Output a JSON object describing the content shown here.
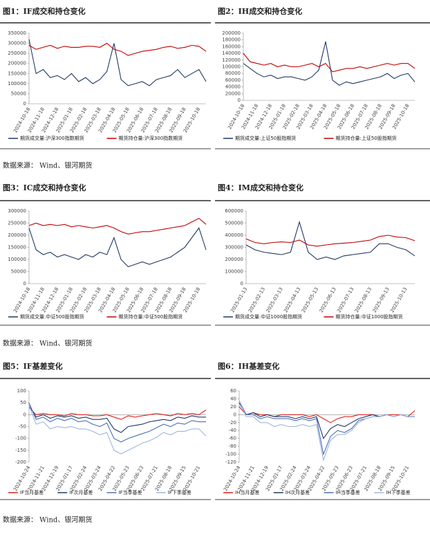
{
  "chart_data": [
    {
      "type": "line",
      "title": "图1：IF成交和持仓变化",
      "categories": [
        "2024-10-18",
        null,
        "2024-11-18",
        null,
        "2024-12-18",
        null,
        "2025-01-18",
        null,
        "2025-02-18",
        null,
        "2025-03-18",
        null,
        "2025-04-18",
        null,
        "2025-05-18",
        null,
        "2025-06-18",
        null,
        "2025-07-18",
        null,
        "2025-08-18",
        null,
        "2025-09-18",
        null,
        "2025-10-18",
        null
      ],
      "ylim": [
        0,
        350000
      ],
      "yticks": [
        0,
        50000,
        100000,
        150000,
        200000,
        250000,
        300000,
        350000
      ],
      "grid": false,
      "series": [
        {
          "name": "期货成交量:沪深300指数期货",
          "color": "#1f3864",
          "values": [
            320000,
            150000,
            170000,
            130000,
            140000,
            120000,
            150000,
            110000,
            130000,
            100000,
            120000,
            160000,
            300000,
            120000,
            90000,
            100000,
            110000,
            90000,
            120000,
            130000,
            140000,
            170000,
            130000,
            150000,
            170000,
            110000
          ]
        },
        {
          "name": "期货持仓量:沪深300指数期货",
          "color": "#c00000",
          "values": [
            290000,
            270000,
            280000,
            290000,
            275000,
            285000,
            280000,
            280000,
            285000,
            285000,
            280000,
            300000,
            270000,
            260000,
            240000,
            250000,
            260000,
            265000,
            270000,
            280000,
            285000,
            275000,
            280000,
            290000,
            285000,
            260000
          ]
        }
      ]
    },
    {
      "type": "line",
      "title": "图2：IH成交和持仓变化",
      "categories": [
        "2024-10-18",
        null,
        "2024-11-18",
        null,
        "2024-12-18",
        null,
        "2025-01-18",
        null,
        "2025-02-18",
        null,
        "2025-03-18",
        null,
        "2025-04-18",
        null,
        "2025-05-18",
        null,
        "2025-06-18",
        null,
        "2025-07-18",
        null,
        "2025-08-18",
        null,
        "2025-09-18",
        null,
        "2025-10-18",
        null
      ],
      "ylim": [
        0,
        200000
      ],
      "yticks": [
        0,
        20000,
        40000,
        60000,
        80000,
        100000,
        120000,
        140000,
        160000,
        180000,
        200000
      ],
      "grid": false,
      "series": [
        {
          "name": "期货成交量:上证50股指期货",
          "color": "#1f3864",
          "values": [
            110000,
            95000,
            80000,
            70000,
            75000,
            65000,
            70000,
            70000,
            65000,
            60000,
            70000,
            90000,
            175000,
            60000,
            45000,
            55000,
            50000,
            55000,
            60000,
            65000,
            70000,
            80000,
            65000,
            75000,
            80000,
            55000
          ]
        },
        {
          "name": "期货持仓量:上证50股指期货",
          "color": "#c00000",
          "values": [
            140000,
            115000,
            110000,
            105000,
            110000,
            100000,
            105000,
            100000,
            100000,
            105000,
            110000,
            100000,
            110000,
            85000,
            90000,
            95000,
            95000,
            100000,
            95000,
            100000,
            105000,
            110000,
            105000,
            110000,
            110000,
            95000
          ]
        }
      ]
    },
    {
      "type": "line",
      "title": "图3：IC成交和持仓变化",
      "categories": [
        "2024-10-18",
        null,
        "2024-11-18",
        null,
        "2024-12-18",
        null,
        "2025-01-18",
        null,
        "2025-02-18",
        null,
        "2025-03-18",
        null,
        "2025-04-18",
        null,
        "2025-05-18",
        null,
        "2025-06-18",
        null,
        "2025-07-18",
        null,
        "2025-08-18",
        null,
        "2025-09-18",
        null,
        "2025-10-18",
        null
      ],
      "ylim": [
        0,
        300000
      ],
      "yticks": [
        0,
        50000,
        100000,
        150000,
        200000,
        250000,
        300000
      ],
      "grid": false,
      "series": [
        {
          "name": "期货成交量:中证500股指期货",
          "color": "#1f3864",
          "values": [
            230000,
            140000,
            120000,
            130000,
            110000,
            120000,
            110000,
            100000,
            120000,
            110000,
            130000,
            120000,
            190000,
            100000,
            70000,
            80000,
            90000,
            80000,
            90000,
            100000,
            110000,
            130000,
            150000,
            190000,
            230000,
            140000
          ]
        },
        {
          "name": "期货持仓量:中证500股指期货",
          "color": "#c00000",
          "values": [
            240000,
            250000,
            240000,
            245000,
            240000,
            245000,
            235000,
            240000,
            235000,
            230000,
            235000,
            240000,
            230000,
            215000,
            205000,
            210000,
            215000,
            215000,
            220000,
            225000,
            230000,
            235000,
            240000,
            255000,
            270000,
            245000
          ]
        }
      ]
    },
    {
      "type": "line",
      "title": "图4：IM成交和持仓变化",
      "categories": [
        "2025-01-13",
        null,
        "2025-02-13",
        null,
        "2025-03-13",
        null,
        "2025-04-13",
        null,
        "2025-05-13",
        null,
        "2025-06-13",
        null,
        "2025-07-13",
        null,
        "2025-08-13",
        null,
        "2025-09-13",
        null,
        "2025-10-13",
        null
      ],
      "ylim": [
        0,
        600000
      ],
      "yticks": [
        0,
        100000,
        200000,
        300000,
        400000,
        500000,
        600000
      ],
      "grid": false,
      "series": [
        {
          "name": "期货成交量:中证1000股指期货",
          "color": "#1f3864",
          "values": [
            320000,
            280000,
            260000,
            250000,
            240000,
            260000,
            510000,
            260000,
            200000,
            220000,
            200000,
            230000,
            240000,
            250000,
            260000,
            330000,
            330000,
            300000,
            280000,
            230000
          ]
        },
        {
          "name": "期货持仓量:中证1000股指期货",
          "color": "#c00000",
          "values": [
            370000,
            340000,
            330000,
            340000,
            345000,
            340000,
            360000,
            320000,
            310000,
            320000,
            330000,
            335000,
            340000,
            350000,
            360000,
            390000,
            400000,
            385000,
            380000,
            355000
          ]
        }
      ]
    },
    {
      "type": "line",
      "title": "图5：IF基差变化",
      "categories": [
        "2024-10-24",
        null,
        "2024-11-21",
        null,
        "2024-12-19",
        null,
        "2025-01-17",
        null,
        "2025-02-24",
        null,
        "2025-03-24",
        null,
        "2025-04-22",
        null,
        "2025-05-23",
        null,
        "2025-06-23",
        null,
        "2025-07-21",
        null,
        "2025-08-18",
        null,
        "2025-09-15",
        null,
        "2025-10-21",
        null
      ],
      "ylim": [
        -200,
        100
      ],
      "yticks": [
        -200,
        -150,
        -100,
        -50,
        0,
        50,
        100
      ],
      "grid": false,
      "series": [
        {
          "name": "IF当月基差",
          "color": "#e0201b",
          "values": [
            30,
            0,
            5,
            0,
            0,
            -5,
            5,
            0,
            0,
            -5,
            -5,
            0,
            -10,
            -20,
            -5,
            -10,
            -5,
            0,
            5,
            0,
            -5,
            5,
            0,
            5,
            0,
            20
          ]
        },
        {
          "name": "IF次月基差",
          "color": "#1f3864",
          "values": [
            40,
            -10,
            0,
            -15,
            -5,
            -10,
            -5,
            -15,
            -10,
            -20,
            -20,
            -15,
            -60,
            -75,
            -50,
            -45,
            -40,
            -30,
            -25,
            -20,
            -25,
            -10,
            -15,
            -5,
            -10,
            -10
          ]
        },
        {
          "name": "IF当季基差",
          "color": "#4a6fb5",
          "values": [
            50,
            -20,
            -10,
            -30,
            -15,
            -25,
            -15,
            -30,
            -25,
            -40,
            -50,
            -35,
            -100,
            -115,
            -100,
            -90,
            -80,
            -70,
            -55,
            -40,
            -50,
            -35,
            -40,
            -25,
            -30,
            -30
          ]
        },
        {
          "name": "IF下季基差",
          "color": "#9db4e0",
          "values": [
            40,
            -40,
            -30,
            -60,
            -50,
            -55,
            -50,
            -60,
            -60,
            -70,
            -85,
            -75,
            -150,
            -165,
            -150,
            -135,
            -120,
            -110,
            -95,
            -75,
            -85,
            -70,
            -70,
            -60,
            -60,
            -90
          ]
        }
      ]
    },
    {
      "type": "line",
      "title": "图6：IH基差变化",
      "categories": [
        "2024-10-24",
        null,
        "2024-11-21",
        null,
        "2024-12-19",
        null,
        "2025-01-17",
        null,
        "2025-02-24",
        null,
        "2025-03-24",
        null,
        "2025-04-22",
        null,
        "2025-05-23",
        null,
        "2025-06-23",
        null,
        "2025-07-21",
        null,
        "2025-08-18",
        null,
        "2025-09-15",
        null,
        "2025-10-21",
        null
      ],
      "ylim": [
        -120,
        60
      ],
      "yticks": [
        -120,
        -100,
        -80,
        -60,
        -40,
        -20,
        0,
        20,
        40,
        60
      ],
      "grid": false,
      "series": [
        {
          "name": "IH当月基差",
          "color": "#e0201b",
          "values": [
            20,
            0,
            5,
            0,
            0,
            -5,
            0,
            0,
            0,
            0,
            -5,
            0,
            -10,
            -20,
            -10,
            -5,
            -5,
            0,
            0,
            0,
            -5,
            0,
            0,
            0,
            -5,
            10
          ]
        },
        {
          "name": "IH次月基差",
          "color": "#1f3864",
          "values": [
            30,
            0,
            5,
            -5,
            0,
            -5,
            -5,
            -5,
            -10,
            -5,
            -10,
            -5,
            -60,
            -35,
            -25,
            -30,
            -20,
            -10,
            -5,
            0,
            -5,
            0,
            -5,
            0,
            -5,
            -5
          ]
        },
        {
          "name": "IH当季基差",
          "color": "#4a6fb5",
          "values": [
            35,
            0,
            0,
            -10,
            -5,
            -10,
            -10,
            -10,
            -15,
            -10,
            -15,
            -10,
            -100,
            -55,
            -40,
            -45,
            -35,
            -15,
            -10,
            -5,
            -5,
            0,
            -5,
            0,
            -5,
            -5
          ]
        },
        {
          "name": "IH下季基差",
          "color": "#9db4e0",
          "values": [
            35,
            -5,
            -5,
            -20,
            -20,
            -30,
            -25,
            -30,
            -30,
            -25,
            -30,
            -25,
            -115,
            -65,
            -50,
            -50,
            -40,
            -20,
            -10,
            -5,
            -5,
            0,
            -5,
            0,
            -5,
            -5
          ]
        }
      ]
    }
  ],
  "sources": [
    "数据来源：  Wind、银河期货",
    "数据来源：  Wind、银河期货",
    "数据来源：  Wind、银河期货"
  ]
}
